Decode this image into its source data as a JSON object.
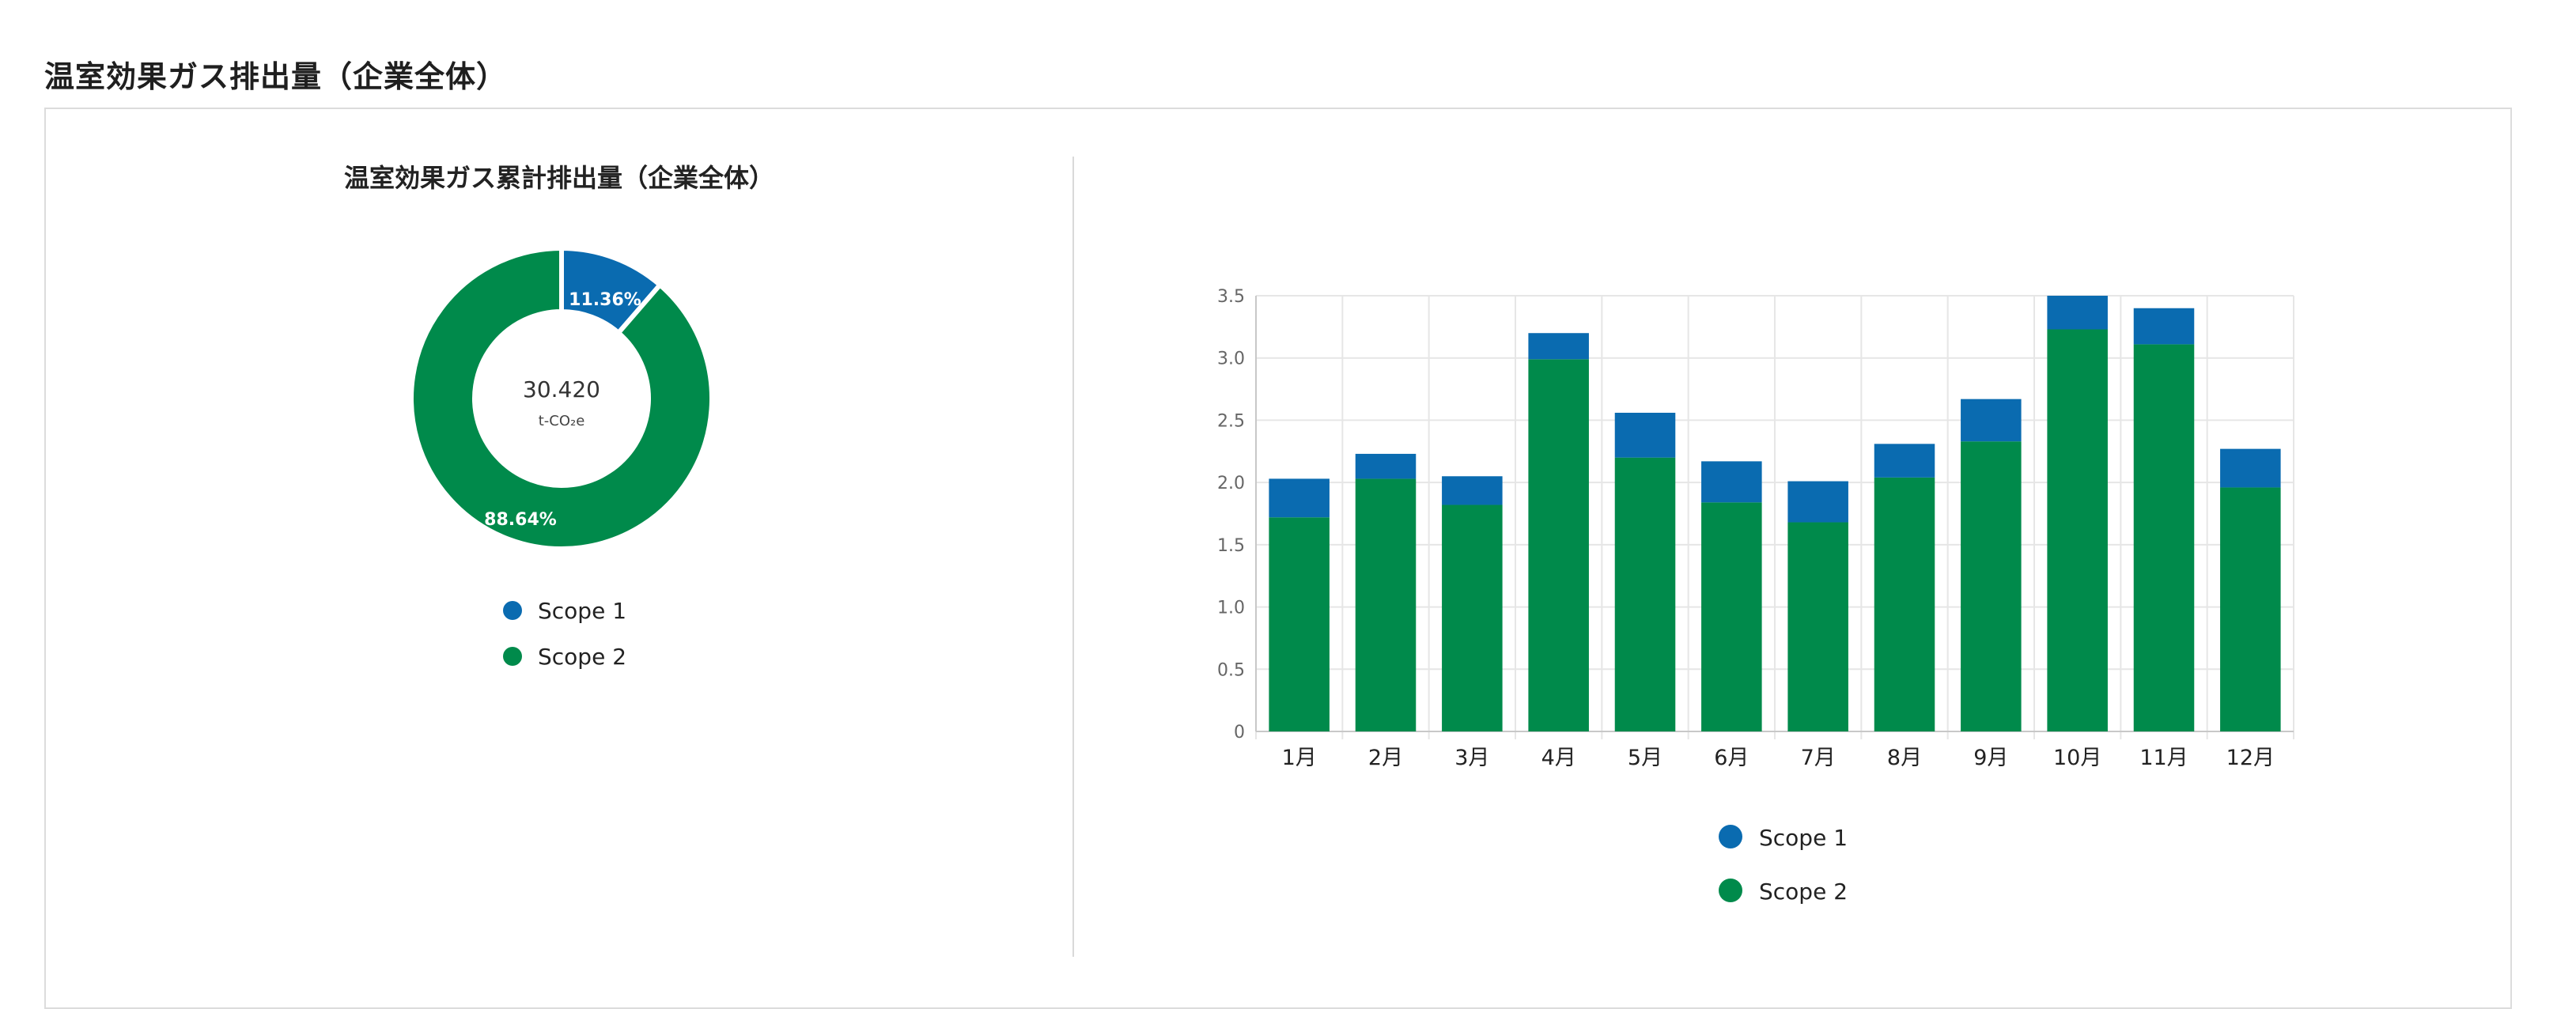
{
  "page": {
    "title": "温室効果ガス排出量（企業全体）"
  },
  "colors": {
    "scope1": "#0a6bb0",
    "scope2": "#008a4b"
  },
  "chart_data": [
    {
      "type": "pie",
      "title": "温室効果ガス累計排出量（企業全体）",
      "center_value": "30.420",
      "center_unit": "t-CO₂e",
      "slices": [
        {
          "name": "Scope 1",
          "label": "11.36%",
          "value": 11.36
        },
        {
          "name": "Scope 2",
          "label": "88.64%",
          "value": 88.64
        }
      ],
      "legend": [
        "Scope 1",
        "Scope 2"
      ],
      "legend_position": "bottom"
    },
    {
      "type": "bar",
      "stacked": true,
      "categories": [
        "1月",
        "2月",
        "3月",
        "4月",
        "5月",
        "6月",
        "7月",
        "8月",
        "9月",
        "10月",
        "11月",
        "12月"
      ],
      "series": [
        {
          "name": "Scope 1",
          "values": [
            0.31,
            0.2,
            0.23,
            0.21,
            0.36,
            0.33,
            0.33,
            0.27,
            0.34,
            0.27,
            0.29,
            0.31
          ]
        },
        {
          "name": "Scope 2",
          "values": [
            1.72,
            2.03,
            1.82,
            2.99,
            2.2,
            1.84,
            1.68,
            2.04,
            2.33,
            3.23,
            3.11,
            1.96
          ]
        }
      ],
      "ylim": [
        0,
        3.5
      ],
      "yticks": [
        "0",
        "0.5",
        "1.0",
        "1.5",
        "2.0",
        "2.5",
        "3.0",
        "3.5"
      ],
      "grid": true,
      "legend": [
        "Scope 1",
        "Scope 2"
      ],
      "legend_position": "bottom"
    }
  ]
}
